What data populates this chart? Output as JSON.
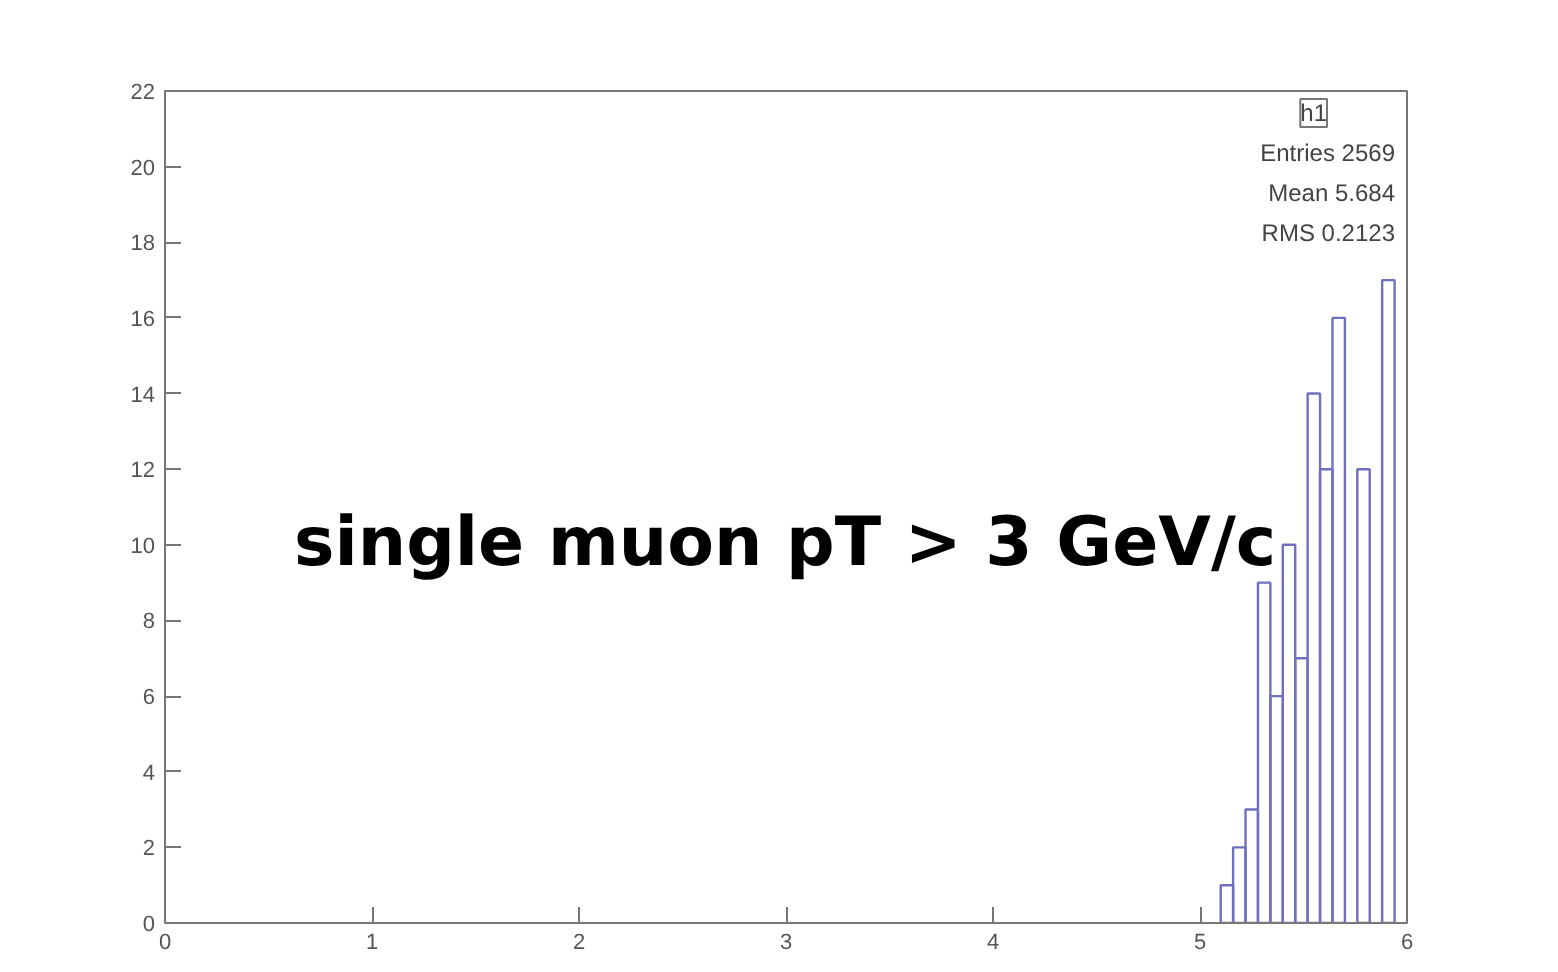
{
  "chart_data": {
    "type": "histogram",
    "bins": [
      5.1,
      5.16,
      5.22,
      5.28,
      5.34,
      5.4,
      5.46,
      5.52,
      5.58,
      5.64,
      5.7,
      5.76,
      5.82,
      5.88,
      5.94,
      6.0
    ],
    "values": [
      1,
      2,
      3,
      9,
      6,
      10,
      7,
      14,
      12,
      16,
      null,
      12,
      null,
      17,
      null
    ],
    "color": "#7070c0",
    "xlim": [
      0,
      6
    ],
    "xticks": [
      0,
      1,
      2,
      3,
      4,
      5,
      6
    ],
    "ylim": [
      0,
      22
    ],
    "yticks": [
      0,
      2,
      4,
      6,
      8,
      10,
      12,
      14,
      16,
      18,
      20,
      22
    ],
    "grid": false,
    "annotations": [
      "h1",
      "Entries 2569",
      "Mean 5.684",
      "RMS 0.2123",
      "single muon pT > 3 GeV/c"
    ]
  }
}
